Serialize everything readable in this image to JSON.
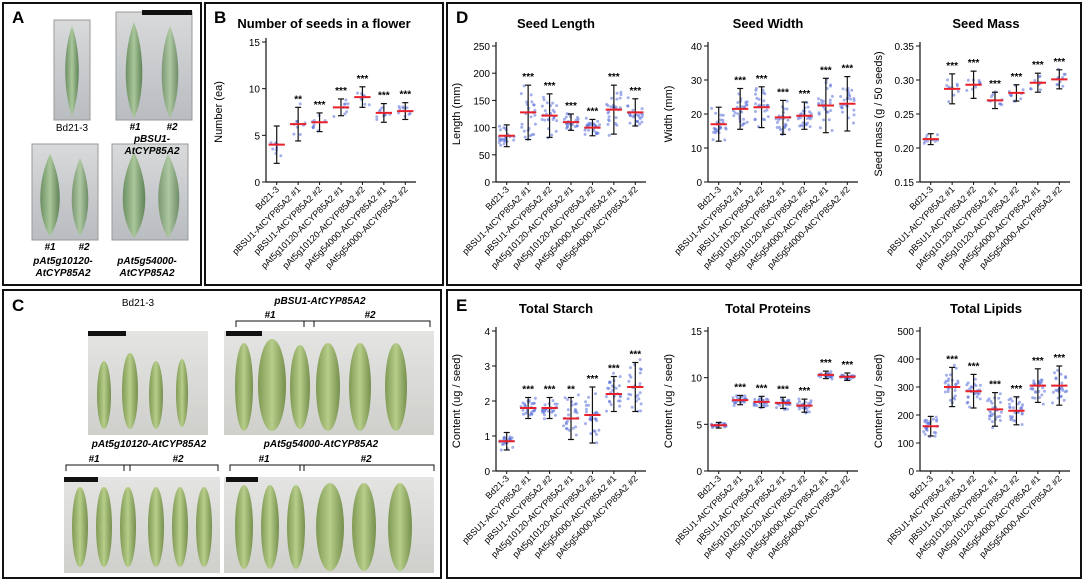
{
  "figure": {
    "panels": {
      "A": {
        "label": "A",
        "photos": [
          {
            "caption": "Bd21-3",
            "markers": []
          },
          {
            "caption": "pBSU1-\nAtCYP85A2",
            "markers": [
              "#1",
              "#2"
            ]
          },
          {
            "caption": "pAt5g10120-\nAtCYP85A2",
            "markers": [
              "#1",
              "#2"
            ]
          },
          {
            "caption": "pAt5g54000-\nAtCYP85A2",
            "markers": [
              "#1",
              "#2"
            ]
          }
        ]
      },
      "C": {
        "label": "C",
        "groups": [
          {
            "caption": "Bd21-3",
            "markers": []
          },
          {
            "caption": "pBSU1-AtCYP85A2",
            "markers": [
              "#1",
              "#2"
            ]
          },
          {
            "caption": "pAt5g10120-AtCYP85A2",
            "markers": [
              "#1",
              "#2"
            ]
          },
          {
            "caption": "pAt5g54000-AtCYP85A2",
            "markers": [
              "#1",
              "#2"
            ]
          }
        ]
      },
      "B": {
        "label": "B"
      },
      "D": {
        "label": "D"
      },
      "E": {
        "label": "E"
      }
    }
  },
  "colors": {
    "accent_mean": "#e8202a",
    "point": "#5a6fd8",
    "error": "#111111"
  },
  "chart_data": [
    {
      "id": "B",
      "type": "scatter",
      "title": "Number of seeds in a flower",
      "ylabel": "Number  (ea)",
      "ylim": [
        0,
        15
      ],
      "yticks": [
        0,
        5,
        10,
        15
      ],
      "categories": [
        "Bd21-3",
        "pBSU1-AtCYP85A2 #1",
        "pBSU1-AtCYP85A2 #2",
        "pAt5g10120-AtCYP85A2 #1",
        "pAt5g10120-AtCYP85A2 #2",
        "pAt5g54000-AtCYP85A2 #1",
        "pAt5g54000-AtCYP85A2 #2"
      ],
      "means": [
        4.0,
        6.2,
        6.4,
        8.0,
        9.1,
        7.4,
        7.6
      ],
      "sd": [
        2.0,
        1.8,
        1.0,
        0.9,
        1.1,
        1.0,
        0.9
      ],
      "significance": [
        "",
        "**",
        "***",
        "***",
        "***",
        "***",
        "***"
      ]
    },
    {
      "id": "D1",
      "type": "scatter",
      "title": "Seed Length",
      "ylabel": "Length (mm)",
      "ylim": [
        0,
        250
      ],
      "yticks": [
        0,
        50,
        100,
        150,
        200,
        250
      ],
      "categories": [
        "Bd21-3",
        "pBSU1-AtCYP85A2 #1",
        "pBSU1-AtCYP85A2 #2",
        "pAt5g10120-AtCYP85A2 #1",
        "pAt5g10120-AtCYP85A2 #2",
        "pAt5g54000-AtCYP85A2 #1",
        "pAt5g54000-AtCYP85A2 #2"
      ],
      "means": [
        85,
        128,
        122,
        110,
        100,
        133,
        128
      ],
      "sd": [
        20,
        50,
        40,
        15,
        15,
        45,
        25
      ],
      "significance": [
        "",
        "***",
        "***",
        "***",
        "***",
        "***",
        "***"
      ]
    },
    {
      "id": "D2",
      "type": "scatter",
      "title": "Seed Width",
      "ylabel": "Width (mm)",
      "ylim": [
        0,
        40
      ],
      "yticks": [
        0,
        10,
        20,
        30,
        40
      ],
      "categories": [
        "Bd21-3",
        "pBSU1-AtCYP85A2 #1",
        "pBSU1-AtCYP85A2 #2",
        "pAt5g10120-AtCYP85A2 #1",
        "pAt5g10120-AtCYP85A2 #2",
        "pAt5g54000-AtCYP85A2 #1",
        "pAt5g54000-AtCYP85A2 #2"
      ],
      "means": [
        17,
        21.5,
        22,
        19,
        19.5,
        22.5,
        23
      ],
      "sd": [
        5,
        6,
        6,
        5,
        4,
        8,
        8
      ],
      "significance": [
        "",
        "***",
        "***",
        "***",
        "***",
        "***",
        "***"
      ]
    },
    {
      "id": "D3",
      "type": "scatter",
      "title": "Seed Mass",
      "ylabel": "Seed  mass  (g / 50 seeds)",
      "ylim": [
        0.15,
        0.35
      ],
      "yticks": [
        0.15,
        0.2,
        0.25,
        0.3,
        0.35
      ],
      "categories": [
        "Bd21-3",
        "pBSU1-AtCYP85A2 #1",
        "pBSU1-AtCYP85A2 #2",
        "pAt5g10120-AtCYP85A2 #1",
        "pAt5g10120-AtCYP85A2 #2",
        "pAt5g54000-AtCYP85A2 #1",
        "pAt5g54000-AtCYP85A2 #2"
      ],
      "means": [
        0.213,
        0.287,
        0.293,
        0.27,
        0.281,
        0.296,
        0.301
      ],
      "sd": [
        0.008,
        0.022,
        0.02,
        0.012,
        0.012,
        0.014,
        0.014
      ],
      "significance": [
        "",
        "***",
        "***",
        "***",
        "***",
        "***",
        "***"
      ]
    },
    {
      "id": "E1",
      "type": "scatter",
      "title": "Total  Starch",
      "ylabel": "Content (ug / seed)",
      "ylim": [
        0,
        4
      ],
      "yticks": [
        0,
        1,
        2,
        3,
        4
      ],
      "categories": [
        "Bd21-3",
        "pBSU1-AtCYP85A2 #1",
        "pBSU1-AtCYP85A2 #2",
        "pAt5g10120-AtCYP85A2 #1",
        "pAt5g10120-AtCYP85A2 #2",
        "pAt5g54000-AtCYP85A2 #1",
        "pAt5g54000-AtCYP85A2 #2"
      ],
      "means": [
        0.85,
        1.8,
        1.8,
        1.5,
        1.6,
        2.2,
        2.4
      ],
      "sd": [
        0.25,
        0.3,
        0.3,
        0.6,
        0.8,
        0.5,
        0.7
      ],
      "significance": [
        "",
        "***",
        "***",
        "**",
        "***",
        "***",
        "***"
      ]
    },
    {
      "id": "E2",
      "type": "scatter",
      "title": "Total  Proteins",
      "ylabel": "Content (ug / seed)",
      "ylim": [
        0,
        15
      ],
      "yticks": [
        0,
        5,
        10,
        15
      ],
      "categories": [
        "Bd21-3",
        "pBSU1-AtCYP85A2 #1",
        "pBSU1-AtCYP85A2 #2",
        "pAt5g10120-AtCYP85A2 #1",
        "pAt5g10120-AtCYP85A2 #2",
        "pAt5g54000-AtCYP85A2 #1",
        "pAt5g54000-AtCYP85A2 #2"
      ],
      "means": [
        4.9,
        7.6,
        7.4,
        7.3,
        7.0,
        10.3,
        10.1
      ],
      "sd": [
        0.3,
        0.5,
        0.6,
        0.6,
        0.7,
        0.4,
        0.4
      ],
      "significance": [
        "",
        "***",
        "***",
        "***",
        "***",
        "***",
        "***"
      ]
    },
    {
      "id": "E3",
      "type": "scatter",
      "title": "Total  Lipids",
      "ylabel": "Content (ug / seed)",
      "ylim": [
        0,
        500
      ],
      "yticks": [
        0,
        100,
        200,
        300,
        400,
        500
      ],
      "categories": [
        "Bd21-3",
        "pBSU1-AtCYP85A2 #1",
        "pBSU1-AtCYP85A2 #2",
        "pAt5g10120-AtCYP85A2 #1",
        "pAt5g10120-AtCYP85A2 #2",
        "pAt5g54000-AtCYP85A2 #1",
        "pAt5g54000-AtCYP85A2 #2"
      ],
      "means": [
        160,
        300,
        285,
        220,
        215,
        305,
        305
      ],
      "sd": [
        35,
        70,
        60,
        60,
        50,
        60,
        70
      ],
      "significance": [
        "",
        "***",
        "***",
        "***",
        "***",
        "***",
        "***"
      ]
    }
  ]
}
